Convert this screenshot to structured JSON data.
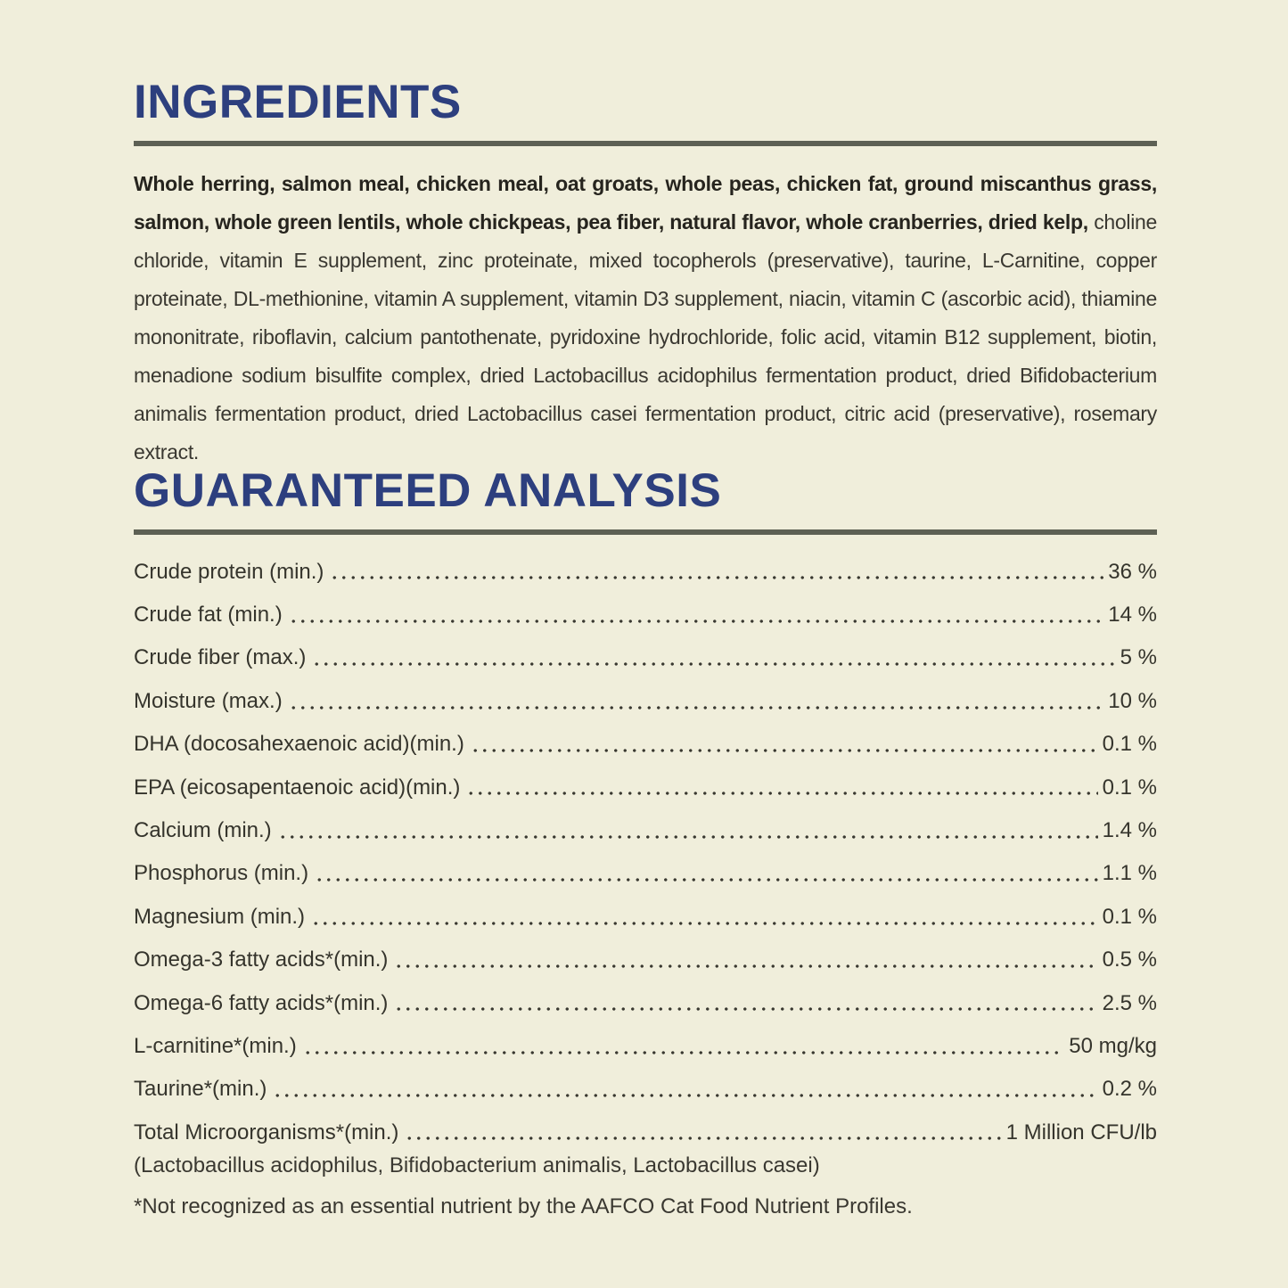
{
  "colors": {
    "background": "#f0eedb",
    "heading": "#2d3f7e",
    "rule": "#5d6054",
    "body_text": "#3a3831"
  },
  "ingredients": {
    "title": "INGREDIENTS",
    "primary_text": "Whole herring, salmon meal, chicken meal, oat groats, whole peas, chicken fat, ground miscanthus grass, salmon, whole green lentils, whole chickpeas, pea fiber, natural flavor, whole cranberries, dried kelp, ",
    "secondary_text": "choline chloride, vitamin E supplement, zinc proteinate, mixed tocopherols (preservative), taurine, L-Carnitine, copper proteinate, DL-methionine, vitamin A supplement, vitamin D3 supplement, niacin, vitamin C (ascorbic acid), thiamine mononitrate, riboflavin, calcium pantothenate, pyridoxine hydrochloride, folic acid, vitamin B12 supplement, biotin, menadione sodium bisulfite complex, dried Lactobacillus acidophilus fermentation product, dried Bifidobacterium animalis fermentation product, dried Lactobacillus casei fermentation product, citric acid (preservative), rosemary extract."
  },
  "guaranteed_analysis": {
    "title": "GUARANTEED ANALYSIS",
    "rows": [
      {
        "label": "Crude protein (min.)",
        "value": "36 %"
      },
      {
        "label": "Crude fat (min.)",
        "value": "14 %"
      },
      {
        "label": "Crude fiber (max.)",
        "value": "5 %"
      },
      {
        "label": "Moisture (max.)",
        "value": "10 %"
      },
      {
        "label": "DHA (docosahexaenoic acid)(min.)",
        "value": "0.1 %"
      },
      {
        "label": "EPA (eicosapentaenoic acid)(min.)",
        "value": "0.1 %"
      },
      {
        "label": "Calcium (min.)",
        "value": "1.4 %"
      },
      {
        "label": "Phosphorus (min.)",
        "value": "1.1 %"
      },
      {
        "label": "Magnesium (min.)",
        "value": "0.1 %"
      },
      {
        "label": "Omega-3 fatty acids*(min.)",
        "value": "0.5 %"
      },
      {
        "label": "Omega-6 fatty acids*(min.)",
        "value": "2.5 %"
      },
      {
        "label": "L-carnitine*(min.)",
        "value": "50 mg/kg"
      },
      {
        "label": "Taurine*(min.)",
        "value": "0.2 %"
      },
      {
        "label": "Total Microorganisms*(min.)",
        "value": "1 Million CFU/lb"
      }
    ],
    "microorganisms_note": "(Lactobacillus acidophilus, Bifidobacterium animalis, Lactobacillus casei)",
    "footnote": "*Not recognized as an essential nutrient by the AAFCO Cat Food Nutrient Profiles."
  }
}
